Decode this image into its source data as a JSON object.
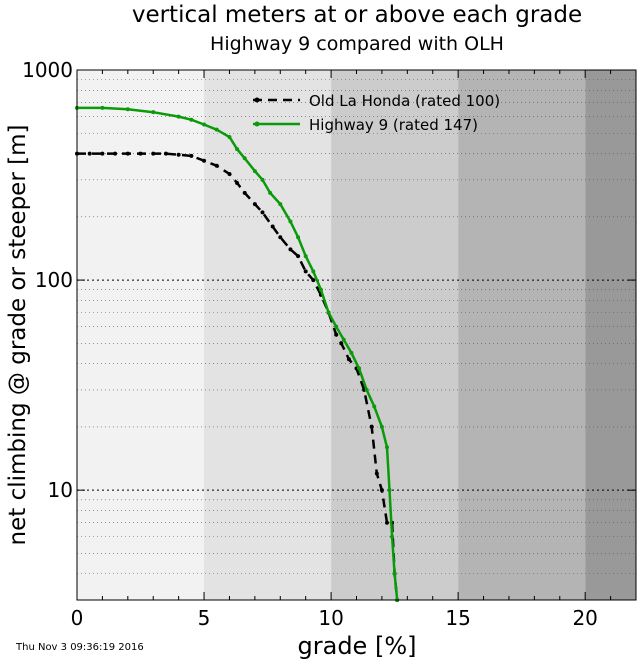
{
  "chart_data": {
    "type": "line",
    "title": "vertical meters at or above each grade",
    "subtitle": "Highway 9 compared with OLH",
    "xlabel": "grade [%]",
    "ylabel": "net climbing @ grade or steeper [m]",
    "xlim": [
      0,
      22
    ],
    "ylim": [
      3,
      1000
    ],
    "y_scale": "log",
    "x_ticks": [
      0,
      5,
      10,
      15,
      20
    ],
    "x_tick_labels": [
      "0",
      "5",
      "10",
      "15",
      "20"
    ],
    "y_ticks": [
      10,
      100,
      1000
    ],
    "y_tick_labels": [
      "10",
      "100",
      "1000"
    ],
    "grid": true,
    "legend_position": "top-center",
    "background_bands": [
      {
        "from": 0,
        "to": 5,
        "color": "#f2f2f2"
      },
      {
        "from": 5,
        "to": 10,
        "color": "#e3e3e3"
      },
      {
        "from": 10,
        "to": 15,
        "color": "#cccccc"
      },
      {
        "from": 15,
        "to": 20,
        "color": "#b4b4b4"
      },
      {
        "from": 20,
        "to": 22,
        "color": "#999999"
      }
    ],
    "series": [
      {
        "name": "Old La Honda (rated 100)",
        "color": "#000000",
        "dash": "dashed",
        "x": [
          0,
          0.5,
          1,
          1.5,
          2,
          2.5,
          3,
          3.5,
          4,
          4.5,
          5,
          5.5,
          6,
          6.3,
          6.6,
          7,
          7.3,
          7.7,
          8,
          8.4,
          8.7,
          9,
          9.3,
          9.6,
          9.9,
          10.2,
          10.4,
          10.7,
          11,
          11.3,
          11.6,
          11.8,
          12,
          12.2,
          12.4,
          12.5,
          12.6
        ],
        "y": [
          400,
          400,
          400,
          400,
          400,
          400,
          400,
          400,
          395,
          390,
          370,
          350,
          320,
          290,
          260,
          230,
          210,
          180,
          160,
          140,
          130,
          110,
          100,
          85,
          70,
          55,
          50,
          42,
          38,
          30,
          20,
          12,
          10,
          7,
          7,
          4,
          3
        ]
      },
      {
        "name": "Highway 9 (rated 147)",
        "color": "#0a9a0a",
        "dash": "solid",
        "x": [
          0,
          1,
          2,
          3,
          4,
          4.5,
          5,
          5.5,
          6,
          6.3,
          6.6,
          7,
          7.3,
          7.6,
          8,
          8.4,
          8.7,
          9,
          9.3,
          9.6,
          9.9,
          10.2,
          10.5,
          10.8,
          11.1,
          11.4,
          11.7,
          12,
          12.2,
          12.3,
          12.4,
          12.5,
          12.6
        ],
        "y": [
          660,
          660,
          650,
          630,
          600,
          580,
          550,
          520,
          480,
          420,
          380,
          330,
          300,
          260,
          230,
          190,
          160,
          130,
          110,
          90,
          70,
          60,
          52,
          45,
          38,
          30,
          25,
          20,
          16,
          10,
          6,
          4,
          3
        ]
      }
    ]
  },
  "footer": {
    "timestamp": "Thu Nov  3 09:36:19 2016"
  }
}
